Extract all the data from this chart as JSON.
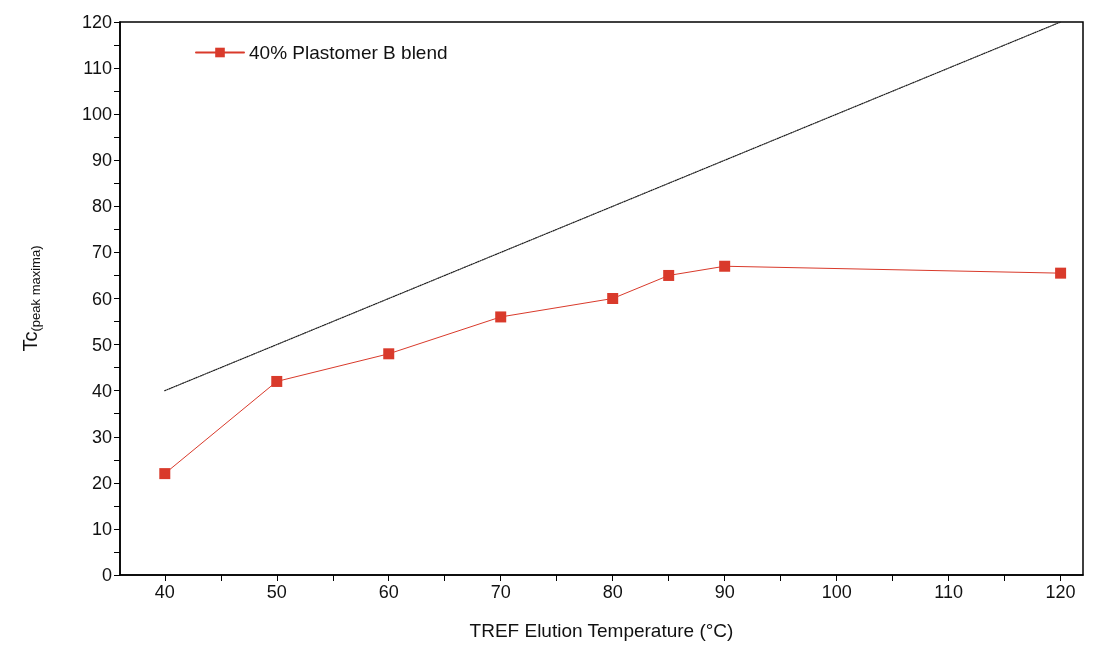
{
  "chart_data": {
    "type": "line",
    "xlabel": "TREF Elution Temperature (°C)",
    "ylabel": "Tc$_{(peak maxima)}$",
    "x": [
      40,
      50,
      60,
      70,
      80,
      85,
      90,
      120
    ],
    "series": [
      {
        "name": "40% Plastomer B blend",
        "color": "#d93a2b",
        "values": [
          22,
          42,
          48,
          56,
          60,
          65,
          67,
          65.5
        ],
        "marker": "square",
        "line_style": "solid"
      },
      {
        "color": "#222222",
        "x": [
          40,
          120
        ],
        "values": [
          40,
          120
        ],
        "marker": "none",
        "line_style": "dotted"
      }
    ],
    "xlim": [
      36,
      122
    ],
    "xticks": [
      40,
      {
        "value": 45,
        "label": null
      },
      50,
      {
        "value": 55,
        "label": null
      },
      60,
      {
        "value": 65,
        "label": null
      },
      70,
      {
        "value": 75,
        "label": null
      },
      80,
      {
        "value": 85,
        "label": null
      },
      90,
      {
        "value": 95,
        "label": null
      },
      100,
      {
        "value": 105,
        "label": null
      },
      110,
      {
        "value": 115,
        "label": null
      },
      120
    ],
    "ylim": [
      0,
      120
    ],
    "yticks": [
      0,
      {
        "value": 5,
        "label": null
      },
      10,
      {
        "value": 15,
        "label": null
      },
      20,
      {
        "value": 25,
        "label": null
      },
      30,
      {
        "value": 35,
        "label": null
      },
      40,
      {
        "value": 45,
        "label": null
      },
      50,
      {
        "value": 55,
        "label": null
      },
      60,
      {
        "value": 65,
        "label": null
      },
      70,
      {
        "value": 75,
        "label": null
      },
      80,
      {
        "value": 85,
        "label": null
      },
      90,
      {
        "value": 95,
        "label": null
      },
      100,
      {
        "value": 105,
        "label": null
      },
      110,
      {
        "value": 115,
        "label": null
      },
      120
    ],
    "grid": false,
    "legend": "top left"
  }
}
